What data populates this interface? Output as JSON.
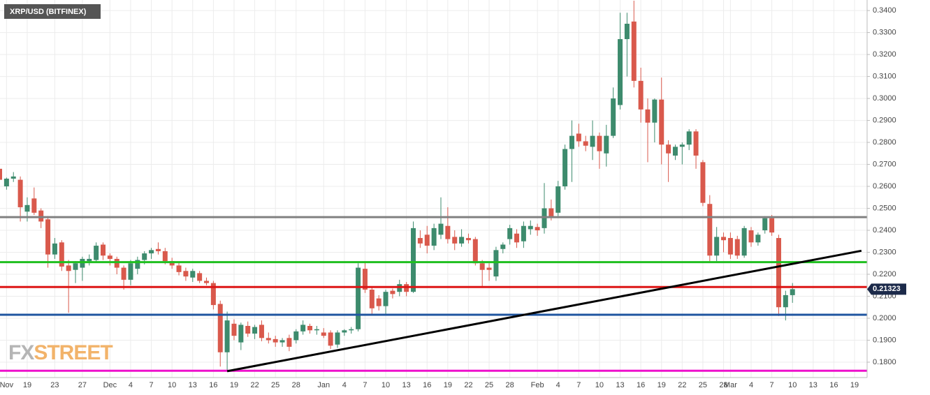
{
  "chart_data": {
    "type": "candlestick",
    "title": "XRP/USD (BITFINEX)",
    "logo": [
      "FX",
      "STREET"
    ],
    "up_color": "#3d8b6d",
    "down_color": "#d9594c",
    "grid": true,
    "ylim": [
      0.173,
      0.3448
    ],
    "yticks": [
      {
        "value": 0.18,
        "label": "0.1800"
      },
      {
        "value": 0.19,
        "label": "0.1900"
      },
      {
        "value": 0.2,
        "label": "0.2000"
      },
      {
        "value": 0.21,
        "label": "0.2100"
      },
      {
        "value": 0.22,
        "label": "0.2200"
      },
      {
        "value": 0.23,
        "label": "0.2300"
      },
      {
        "value": 0.24,
        "label": "0.2400"
      },
      {
        "value": 0.25,
        "label": "0.2500"
      },
      {
        "value": 0.26,
        "label": "0.2600"
      },
      {
        "value": 0.27,
        "label": "0.2700"
      },
      {
        "value": 0.28,
        "label": "0.2800"
      },
      {
        "value": 0.29,
        "label": "0.2900"
      },
      {
        "value": 0.3,
        "label": "0.3000"
      },
      {
        "value": 0.31,
        "label": "0.3100"
      },
      {
        "value": 0.32,
        "label": "0.3200"
      },
      {
        "value": 0.33,
        "label": "0.3300"
      },
      {
        "value": 0.34,
        "label": "0.3400"
      }
    ],
    "categories": [
      null,
      "Nov",
      null,
      null,
      "19",
      null,
      null,
      null,
      "23",
      null,
      null,
      null,
      "27",
      null,
      null,
      null,
      "Dec",
      null,
      null,
      "4",
      null,
      null,
      "7",
      null,
      null,
      "10",
      null,
      null,
      "13",
      null,
      null,
      "16",
      null,
      null,
      "19",
      null,
      null,
      "22",
      null,
      null,
      "25",
      null,
      null,
      "28",
      null,
      null,
      null,
      "Jan",
      null,
      null,
      "4",
      null,
      null,
      "7",
      null,
      null,
      "10",
      null,
      null,
      "13",
      null,
      null,
      "16",
      null,
      null,
      "19",
      null,
      null,
      "22",
      null,
      null,
      "25",
      null,
      null,
      "28",
      null,
      null,
      null,
      "Feb",
      null,
      null,
      "4",
      null,
      null,
      "7",
      null,
      null,
      "10",
      null,
      null,
      "13",
      null,
      null,
      "16",
      null,
      null,
      "19",
      null,
      null,
      "22",
      null,
      null,
      "25",
      null,
      null,
      "28",
      "Mar",
      null,
      null,
      "4",
      null,
      null,
      "7",
      null,
      null,
      "10",
      null,
      null,
      "13",
      null,
      null,
      "16",
      null,
      null,
      "19",
      null
    ],
    "ohlc": [
      [
        0.268,
        0.27,
        0.2615,
        0.263
      ],
      [
        0.26,
        0.264,
        0.2585,
        0.2635
      ],
      [
        0.2635,
        0.2665,
        0.262,
        0.2645
      ],
      [
        0.263,
        0.2645,
        0.244,
        0.2505
      ],
      [
        0.2485,
        0.255,
        0.244,
        0.2515
      ],
      [
        0.2545,
        0.2595,
        0.247,
        0.248
      ],
      [
        0.249,
        0.25,
        0.241,
        0.244
      ],
      [
        0.245,
        0.2465,
        0.223,
        0.229
      ],
      [
        0.229,
        0.2365,
        0.227,
        0.234
      ],
      [
        0.2345,
        0.2355,
        0.2215,
        0.2235
      ],
      [
        0.224,
        0.2265,
        0.2025,
        0.2215
      ],
      [
        0.222,
        0.226,
        0.216,
        0.225
      ],
      [
        0.223,
        0.228,
        0.217,
        0.227
      ],
      [
        0.226,
        0.229,
        0.224,
        0.227
      ],
      [
        0.2265,
        0.2345,
        0.2255,
        0.233
      ],
      [
        0.2335,
        0.2345,
        0.2265,
        0.2285
      ],
      [
        0.2285,
        0.2295,
        0.224,
        0.227
      ],
      [
        0.227,
        0.228,
        0.22,
        0.223
      ],
      [
        0.223,
        0.224,
        0.213,
        0.2175
      ],
      [
        0.2175,
        0.2265,
        0.215,
        0.225
      ],
      [
        0.2225,
        0.228,
        0.22,
        0.2265
      ],
      [
        0.2265,
        0.2305,
        0.2245,
        0.2295
      ],
      [
        0.2295,
        0.232,
        0.227,
        0.231
      ],
      [
        0.2315,
        0.2345,
        0.229,
        0.2305
      ],
      [
        0.2305,
        0.232,
        0.2245,
        0.226
      ],
      [
        0.226,
        0.2275,
        0.2225,
        0.224
      ],
      [
        0.224,
        0.2255,
        0.2195,
        0.221
      ],
      [
        0.2215,
        0.223,
        0.217,
        0.219
      ],
      [
        0.2185,
        0.2225,
        0.2165,
        0.2215
      ],
      [
        0.2205,
        0.2215,
        0.216,
        0.217
      ],
      [
        0.217,
        0.2185,
        0.215,
        0.216
      ],
      [
        0.216,
        0.217,
        0.204,
        0.206
      ],
      [
        0.2065,
        0.208,
        0.178,
        0.1845
      ],
      [
        0.1845,
        0.203,
        0.176,
        0.199
      ],
      [
        0.1975,
        0.1995,
        0.19,
        0.192
      ],
      [
        0.189,
        0.198,
        0.1855,
        0.197
      ],
      [
        0.1965,
        0.1985,
        0.1915,
        0.193
      ],
      [
        0.193,
        0.197,
        0.1905,
        0.196
      ],
      [
        0.197,
        0.199,
        0.1895,
        0.191
      ],
      [
        0.191,
        0.1935,
        0.1885,
        0.19
      ],
      [
        0.1905,
        0.192,
        0.187,
        0.189
      ],
      [
        0.189,
        0.191,
        0.187,
        0.19
      ],
      [
        0.191,
        0.1925,
        0.185,
        0.187
      ],
      [
        0.19,
        0.195,
        0.1885,
        0.194
      ],
      [
        0.194,
        0.199,
        0.1925,
        0.197
      ],
      [
        0.1965,
        0.1975,
        0.193,
        0.1945
      ],
      [
        0.1945,
        0.1965,
        0.1925,
        0.195
      ],
      [
        0.1935,
        0.1955,
        0.191,
        0.192
      ],
      [
        0.1935,
        0.1945,
        0.186,
        0.1875
      ],
      [
        0.188,
        0.1945,
        0.1865,
        0.1935
      ],
      [
        0.1935,
        0.195,
        0.192,
        0.1945
      ],
      [
        0.1945,
        0.196,
        0.193,
        0.195
      ],
      [
        0.195,
        0.225,
        0.194,
        0.223
      ],
      [
        0.2225,
        0.2255,
        0.2115,
        0.213
      ],
      [
        0.213,
        0.214,
        0.202,
        0.2045
      ],
      [
        0.209,
        0.2105,
        0.2035,
        0.2055
      ],
      [
        0.2055,
        0.213,
        0.2015,
        0.212
      ],
      [
        0.2125,
        0.2135,
        0.209,
        0.211
      ],
      [
        0.212,
        0.2175,
        0.21,
        0.2155
      ],
      [
        0.2155,
        0.2165,
        0.21,
        0.212
      ],
      [
        0.212,
        0.244,
        0.2115,
        0.241
      ],
      [
        0.2365,
        0.24,
        0.232,
        0.234
      ],
      [
        0.238,
        0.242,
        0.2295,
        0.233
      ],
      [
        0.233,
        0.243,
        0.231,
        0.241
      ],
      [
        0.238,
        0.255,
        0.236,
        0.243
      ],
      [
        0.242,
        0.2505,
        0.234,
        0.236
      ],
      [
        0.237,
        0.24,
        0.231,
        0.234
      ],
      [
        0.234,
        0.2405,
        0.2325,
        0.237
      ],
      [
        0.2365,
        0.2385,
        0.234,
        0.2355
      ],
      [
        0.236,
        0.237,
        0.224,
        0.225
      ],
      [
        0.225,
        0.2265,
        0.2145,
        0.222
      ],
      [
        0.223,
        0.225,
        0.217,
        0.222
      ],
      [
        0.219,
        0.2325,
        0.217,
        0.231
      ],
      [
        0.2315,
        0.2345,
        0.2295,
        0.2335
      ],
      [
        0.236,
        0.2425,
        0.2335,
        0.241
      ],
      [
        0.2385,
        0.2405,
        0.232,
        0.2345
      ],
      [
        0.235,
        0.244,
        0.232,
        0.242
      ],
      [
        0.2405,
        0.2445,
        0.238,
        0.242
      ],
      [
        0.2415,
        0.243,
        0.2375,
        0.24
      ],
      [
        0.241,
        0.2615,
        0.2385,
        0.25
      ],
      [
        0.25,
        0.254,
        0.2445,
        0.246
      ],
      [
        0.248,
        0.2625,
        0.2465,
        0.26
      ],
      [
        0.26,
        0.279,
        0.2585,
        0.277
      ],
      [
        0.277,
        0.29,
        0.262,
        0.283
      ],
      [
        0.284,
        0.2885,
        0.278,
        0.2805
      ],
      [
        0.2805,
        0.283,
        0.276,
        0.2785
      ],
      [
        0.278,
        0.29,
        0.272,
        0.283
      ],
      [
        0.283,
        0.2845,
        0.268,
        0.276
      ],
      [
        0.275,
        0.288,
        0.269,
        0.283
      ],
      [
        0.283,
        0.305,
        0.282,
        0.3
      ],
      [
        0.297,
        0.339,
        0.295,
        0.327
      ],
      [
        0.327,
        0.339,
        0.31,
        0.334
      ],
      [
        0.335,
        0.3445,
        0.305,
        0.308
      ],
      [
        0.308,
        0.314,
        0.289,
        0.295
      ],
      [
        0.295,
        0.3,
        0.271,
        0.289
      ],
      [
        0.289,
        0.3,
        0.28,
        0.2995
      ],
      [
        0.2995,
        0.3095,
        0.27,
        0.279
      ],
      [
        0.279,
        0.281,
        0.262,
        0.275
      ],
      [
        0.274,
        0.279,
        0.272,
        0.278
      ],
      [
        0.278,
        0.28,
        0.27,
        0.279
      ],
      [
        0.279,
        0.286,
        0.2765,
        0.285
      ],
      [
        0.285,
        0.286,
        0.268,
        0.274
      ],
      [
        0.271,
        0.272,
        0.251,
        0.2525
      ],
      [
        0.252,
        0.256,
        0.226,
        0.2285
      ],
      [
        0.2285,
        0.2415,
        0.226,
        0.237
      ],
      [
        0.237,
        0.239,
        0.23,
        0.2355
      ],
      [
        0.2365,
        0.239,
        0.227,
        0.229
      ],
      [
        0.236,
        0.2375,
        0.227,
        0.2285
      ],
      [
        0.2285,
        0.242,
        0.2275,
        0.241
      ],
      [
        0.24,
        0.2415,
        0.2325,
        0.2345
      ],
      [
        0.2345,
        0.239,
        0.233,
        0.238
      ],
      [
        0.24,
        0.2465,
        0.2385,
        0.2455
      ],
      [
        0.2455,
        0.247,
        0.2375,
        0.239
      ],
      [
        0.2365,
        0.238,
        0.201,
        0.205
      ],
      [
        0.205,
        0.2125,
        0.199,
        0.2105
      ],
      [
        0.2105,
        0.216,
        0.207,
        0.21323
      ],
      null,
      null,
      null,
      null,
      null,
      null,
      null,
      null,
      null,
      null
    ],
    "levels": [
      {
        "color": "#808080",
        "value": 0.246
      },
      {
        "color": "#1fbf1f",
        "value": 0.2255
      },
      {
        "color": "#dd1515",
        "value": 0.2142
      },
      {
        "color": "#1f55a0",
        "value": 0.2016
      },
      {
        "color": "#ee10cc",
        "value": 0.1761
      }
    ],
    "trendline": {
      "color": "#000000",
      "points": [
        [
          33,
          0.1759
        ],
        [
          125,
          0.2307
        ]
      ]
    },
    "last_price": 0.21323,
    "last_price_color": "#1c2a4a"
  }
}
